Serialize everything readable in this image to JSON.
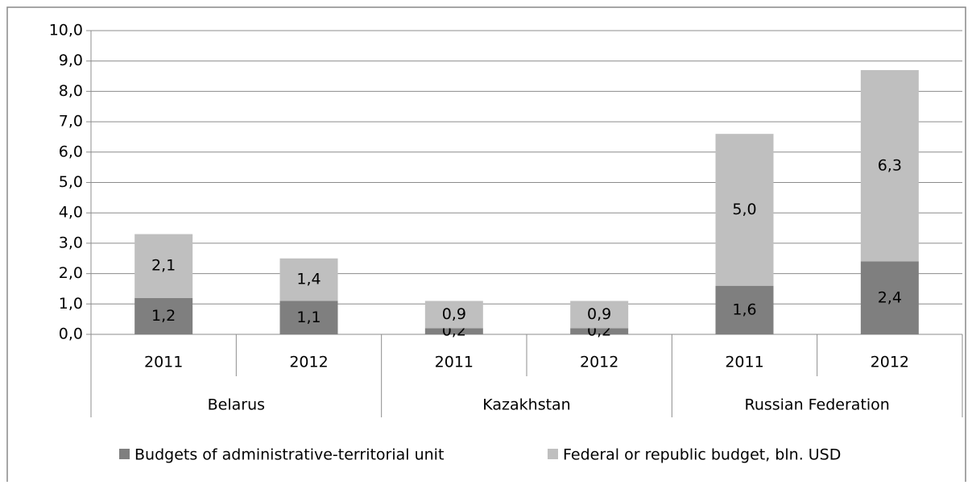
{
  "chart_data": {
    "type": "stacked_bar",
    "categories": [
      "2011",
      "2012",
      "2011",
      "2012",
      "2011",
      "2012"
    ],
    "groups": [
      "Belarus",
      "Kazakhstan",
      "Russian Federation"
    ],
    "series": [
      {
        "name": "Budgets of administrative-territorial unit",
        "color": "#7f7f7f",
        "values": [
          1.2,
          1.1,
          0.2,
          0.2,
          1.6,
          2.4
        ],
        "value_labels": [
          "1,2",
          "1,1",
          "0,2",
          "0,2",
          "1,6",
          "2,4"
        ]
      },
      {
        "name": "Federal or republic budget, bln. USD",
        "color": "#bfbfbf",
        "values": [
          2.1,
          1.4,
          0.9,
          0.9,
          5.0,
          6.3
        ],
        "value_labels": [
          "2,1",
          "1,4",
          "0,9",
          "0,9",
          "5,0",
          "6,3"
        ]
      }
    ],
    "ylim": [
      0,
      10
    ],
    "yticks": [
      {
        "value": 0,
        "label": "0,0"
      },
      {
        "value": 1,
        "label": "1,0"
      },
      {
        "value": 2,
        "label": "2,0"
      },
      {
        "value": 3,
        "label": "3,0"
      },
      {
        "value": 4,
        "label": "4,0"
      },
      {
        "value": 5,
        "label": "5,0"
      },
      {
        "value": 6,
        "label": "6,0"
      },
      {
        "value": 7,
        "label": "7,0"
      },
      {
        "value": 8,
        "label": "8,0"
      },
      {
        "value": 9,
        "label": "9,0"
      },
      {
        "value": 10,
        "label": "10,0"
      }
    ],
    "grid": true,
    "legend": "bottom"
  }
}
